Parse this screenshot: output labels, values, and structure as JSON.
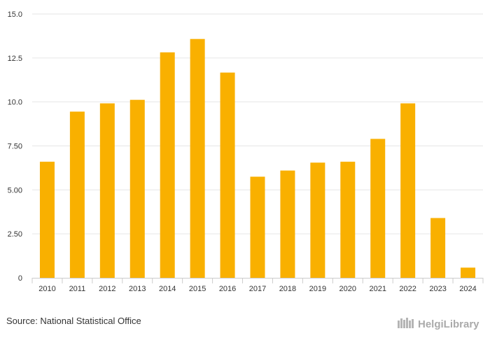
{
  "chart_data": {
    "type": "bar",
    "categories": [
      "2010",
      "2011",
      "2012",
      "2013",
      "2014",
      "2015",
      "2016",
      "2017",
      "2018",
      "2019",
      "2020",
      "2021",
      "2022",
      "2023",
      "2024"
    ],
    "values": [
      6.6,
      9.45,
      9.92,
      10.12,
      12.82,
      13.58,
      11.67,
      5.75,
      6.1,
      6.55,
      6.6,
      7.9,
      9.92,
      3.4,
      0.58
    ],
    "title": "",
    "xlabel": "",
    "ylabel": "",
    "ylim": [
      0,
      15
    ],
    "yticks": [
      0,
      2.5,
      5,
      7.5,
      10,
      12.5,
      15
    ],
    "ytick_labels": [
      "0",
      "2.50",
      "5.00",
      "7.50",
      "10.0",
      "12.5",
      "15.0"
    ],
    "grid": true,
    "bar_color": "#F9B000",
    "grid_color": "#e6e6e6",
    "axis_color": "#cccccc"
  },
  "footer": {
    "source": "Source: National Statistical Office",
    "logo": "HelgiLibrary",
    "logo_icon": "books-icon",
    "logo_color": "#aaaaaa"
  }
}
